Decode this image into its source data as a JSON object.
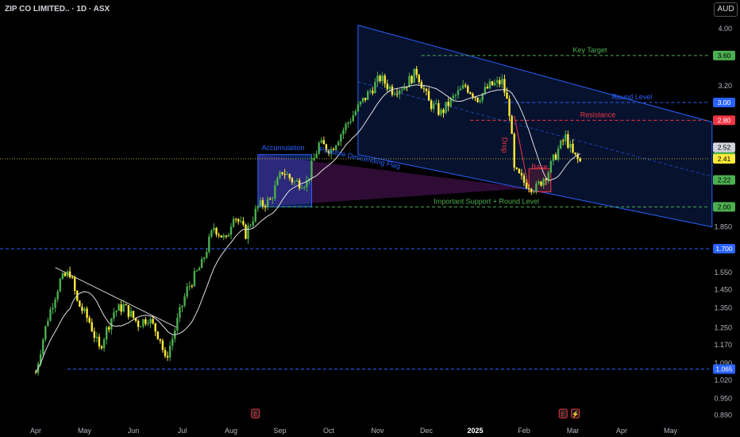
{
  "header": {
    "symbol_title": "ZIP CO LIMITED.. · 1D · ASX",
    "currency": "AUD"
  },
  "chart_data": {
    "type": "candlestick",
    "title": "ZIP CO LIMITED.. · 1D · ASX",
    "y_scale": "log",
    "ylim": [
      0.87,
      4.2
    ],
    "grid": false,
    "x_ticks": [
      "Apr",
      "May",
      "Jun",
      "Jul",
      "Aug",
      "Sep",
      "Oct",
      "Nov",
      "Dec",
      "2025",
      "Feb",
      "Mar",
      "Apr",
      "May"
    ],
    "y_ticks": [
      "4.00",
      "3.60",
      "3.20",
      "2.80",
      "2.52",
      "2.41",
      "2.22",
      "2.00",
      "1.850",
      "1.700",
      "1.550",
      "1.450",
      "1.350",
      "1.250",
      "1.170",
      "1.090",
      "1.065",
      "1.020",
      "0.950",
      "0.890"
    ],
    "price_path": [
      {
        "x": 0,
        "y": 1.05
      },
      {
        "x": 0.5,
        "y": 1.3
      },
      {
        "x": 1,
        "y": 1.5
      },
      {
        "x": 1.4,
        "y": 1.55
      },
      {
        "x": 1.7,
        "y": 1.38
      },
      {
        "x": 2.2,
        "y": 1.28
      },
      {
        "x": 2.6,
        "y": 1.15
      },
      {
        "x": 3.2,
        "y": 1.33
      },
      {
        "x": 3.6,
        "y": 1.36
      },
      {
        "x": 4.2,
        "y": 1.27
      },
      {
        "x": 4.6,
        "y": 1.3
      },
      {
        "x": 5.1,
        "y": 1.2
      },
      {
        "x": 5.3,
        "y": 1.1
      },
      {
        "x": 5.6,
        "y": 1.2
      },
      {
        "x": 6.2,
        "y": 1.45
      },
      {
        "x": 6.8,
        "y": 1.6
      },
      {
        "x": 7.3,
        "y": 1.85
      },
      {
        "x": 7.8,
        "y": 1.75
      },
      {
        "x": 8.1,
        "y": 1.95
      },
      {
        "x": 8.6,
        "y": 1.8
      },
      {
        "x": 9.1,
        "y": 2.0
      },
      {
        "x": 9.6,
        "y": 2.05
      },
      {
        "x": 10.1,
        "y": 2.3
      },
      {
        "x": 10.6,
        "y": 2.2
      },
      {
        "x": 11.1,
        "y": 2.2
      },
      {
        "x": 11.6,
        "y": 2.55
      },
      {
        "x": 12.1,
        "y": 2.5
      },
      {
        "x": 12.6,
        "y": 2.7
      },
      {
        "x": 13.1,
        "y": 2.9
      },
      {
        "x": 13.6,
        "y": 3.1
      },
      {
        "x": 14.1,
        "y": 3.3
      },
      {
        "x": 14.6,
        "y": 3.15
      },
      {
        "x": 15.1,
        "y": 3.2
      },
      {
        "x": 15.6,
        "y": 3.38
      },
      {
        "x": 16.1,
        "y": 3.0
      },
      {
        "x": 16.6,
        "y": 2.88
      },
      {
        "x": 17.1,
        "y": 3.05
      },
      {
        "x": 17.6,
        "y": 3.2
      },
      {
        "x": 18.1,
        "y": 3.05
      },
      {
        "x": 18.6,
        "y": 3.2
      },
      {
        "x": 19.1,
        "y": 3.25
      },
      {
        "x": 19.4,
        "y": 2.9
      },
      {
        "x": 19.6,
        "y": 2.3
      },
      {
        "x": 20.0,
        "y": 2.2
      },
      {
        "x": 20.5,
        "y": 2.15
      },
      {
        "x": 21.0,
        "y": 2.3
      },
      {
        "x": 21.4,
        "y": 2.5
      },
      {
        "x": 21.7,
        "y": 2.62
      },
      {
        "x": 22.0,
        "y": 2.45
      },
      {
        "x": 22.3,
        "y": 2.38
      }
    ],
    "levels": [
      {
        "label": "Key Target",
        "value": 3.6,
        "color": "#4caf50"
      },
      {
        "label": "Round Level",
        "value": 3.0,
        "color": "#2962ff"
      },
      {
        "label": "Resistance",
        "value": 2.8,
        "color": "#f23645"
      },
      {
        "label": "Important Support + Round Level",
        "value": 2.0,
        "color": "#4caf50"
      },
      {
        "label": "",
        "value": 1.7,
        "color": "#2962ff"
      },
      {
        "label": "",
        "value": 1.065,
        "color": "#2962ff"
      }
    ],
    "price_badges": [
      {
        "value": "3.60",
        "color": "#4caf50"
      },
      {
        "value": "3.00",
        "color": "#2962ff"
      },
      {
        "value": "2.80",
        "color": "#f23645"
      },
      {
        "value": "2.52",
        "color": "#d1d4dc"
      },
      {
        "value": "2.41",
        "color": "#4caf50"
      },
      {
        "value": "2.41",
        "color": "#ffeb3b"
      },
      {
        "value": "2.22",
        "color": "#4caf50"
      },
      {
        "value": "2.00",
        "color": "#4caf50"
      },
      {
        "value": "1.700",
        "color": "#2962ff"
      },
      {
        "value": "1.065",
        "color": "#2962ff"
      }
    ],
    "annotations": [
      "Accumulation",
      "Possible Descending Flag",
      "Drop",
      "Base",
      "Key Target",
      "Round Level",
      "Resistance",
      "Important Support + Round Level"
    ],
    "event_markers": [
      "E",
      "E",
      "⚡"
    ],
    "colors": {
      "up": "#4caf50",
      "down": "#ffeb3b",
      "channel": "#2962ff",
      "ma": "#e0e0e0",
      "accent_red": "#f23645"
    }
  }
}
